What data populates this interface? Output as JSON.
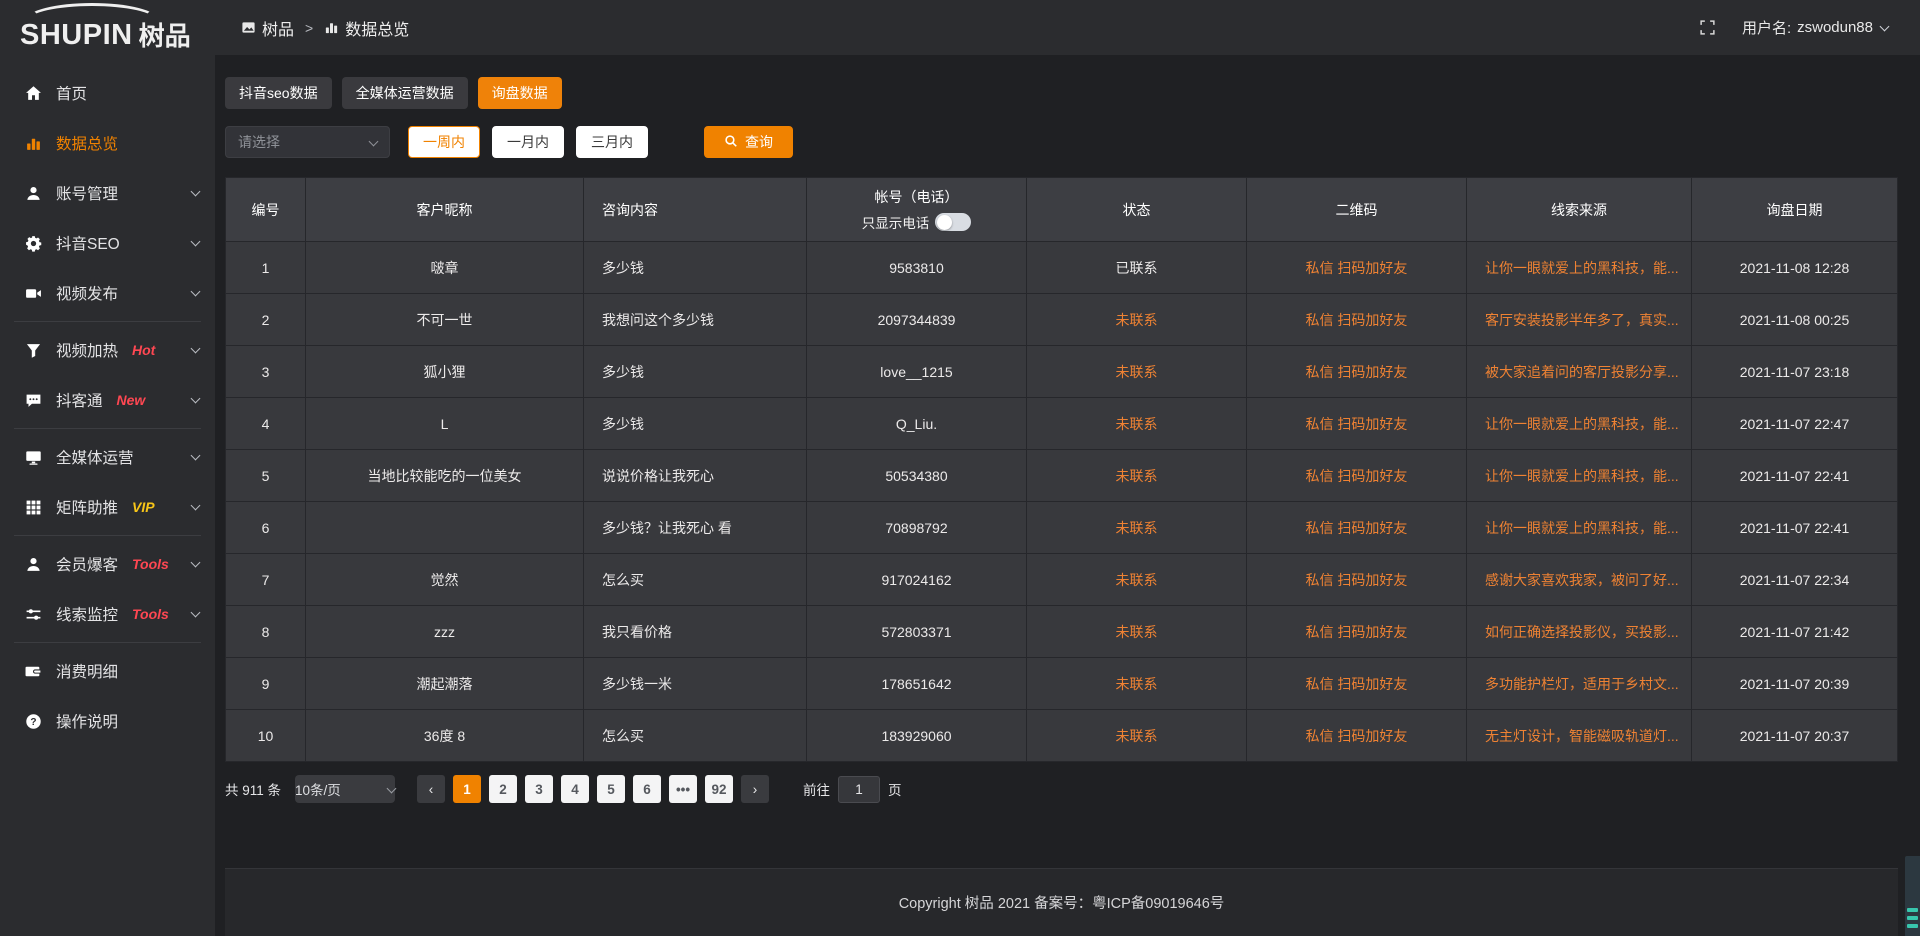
{
  "logo": {
    "brand_en": "SHUPIN",
    "brand_cn": "树品"
  },
  "topbar": {
    "breadcrumb": [
      {
        "label": "树品"
      },
      {
        "label": "数据总览"
      }
    ],
    "separator": ">",
    "username_label": "用户名:",
    "username": "zswodun88"
  },
  "sidebar": {
    "items": [
      {
        "label": "首页",
        "icon": "home",
        "chevron": false
      },
      {
        "label": "数据总览",
        "icon": "chart",
        "active": true,
        "chevron": false
      },
      {
        "label": "账号管理",
        "icon": "user",
        "chevron": true
      },
      {
        "label": "抖音SEO",
        "icon": "gear",
        "chevron": true
      },
      {
        "label": "视频发布",
        "icon": "video",
        "chevron": true,
        "divider_after": true
      },
      {
        "label": "视频加热",
        "icon": "funnel",
        "badge": "Hot",
        "badge_color": "red",
        "chevron": true
      },
      {
        "label": "抖客通",
        "icon": "chat",
        "badge": "New",
        "badge_color": "red",
        "chevron": true,
        "divider_after": true
      },
      {
        "label": "全媒体运营",
        "icon": "monitor",
        "chevron": true
      },
      {
        "label": "矩阵助推",
        "icon": "grid",
        "badge": "VIP",
        "badge_color": "yellow",
        "chevron": true,
        "divider_after": true
      },
      {
        "label": "会员爆客",
        "icon": "person",
        "badge": "Tools",
        "badge_color": "red",
        "chevron": true
      },
      {
        "label": "线索监控",
        "icon": "sliders",
        "badge": "Tools",
        "badge_color": "red",
        "chevron": true,
        "divider_after": true
      },
      {
        "label": "消费明细",
        "icon": "wallet",
        "chevron": false
      },
      {
        "label": "操作说明",
        "icon": "question",
        "chevron": false
      }
    ]
  },
  "tabs": [
    {
      "label": "抖音seo数据",
      "active": false
    },
    {
      "label": "全媒体运营数据",
      "active": false
    },
    {
      "label": "询盘数据",
      "active": true
    }
  ],
  "filters": {
    "select_placeholder": "请选择",
    "period_buttons": [
      {
        "label": "一周内",
        "active": true
      },
      {
        "label": "一月内",
        "active": false
      },
      {
        "label": "三月内",
        "active": false
      }
    ],
    "search_label": "查询"
  },
  "table": {
    "headers": [
      "编号",
      "客户昵称",
      "咨询内容",
      "帐号（电话）",
      "状态",
      "二维码",
      "线索来源",
      "询盘日期"
    ],
    "phone_toggle_label": "只显示电话",
    "rows": [
      {
        "id": "1",
        "nickname": "啵章",
        "content": "多少钱",
        "account": "9583810",
        "status": "已联系",
        "contacted": true,
        "qrcode": "私信 扫码加好友",
        "source": "让你一眼就爱上的黑科技，能...",
        "date": "2021-11-08 12:28"
      },
      {
        "id": "2",
        "nickname": "不可一世",
        "content": "我想问这个多少钱",
        "account": "2097344839",
        "status": "未联系",
        "contacted": false,
        "qrcode": "私信 扫码加好友",
        "source": "客厅安装投影半年多了，真实...",
        "date": "2021-11-08 00:25"
      },
      {
        "id": "3",
        "nickname": "狐小狸",
        "content": "多少钱",
        "account": "love__1215",
        "status": "未联系",
        "contacted": false,
        "qrcode": "私信 扫码加好友",
        "source": "被大家追着问的客厅投影分享...",
        "date": "2021-11-07 23:18"
      },
      {
        "id": "4",
        "nickname": "L",
        "content": "多少钱",
        "account": "Q_Liu.",
        "status": "未联系",
        "contacted": false,
        "qrcode": "私信 扫码加好友",
        "source": "让你一眼就爱上的黑科技，能...",
        "date": "2021-11-07 22:47"
      },
      {
        "id": "5",
        "nickname": "当地比较能吃的一位美女",
        "content": "说说价格让我死心",
        "account": "50534380",
        "status": "未联系",
        "contacted": false,
        "qrcode": "私信 扫码加好友",
        "source": "让你一眼就爱上的黑科技，能...",
        "date": "2021-11-07 22:41"
      },
      {
        "id": "6",
        "nickname": "",
        "content": "多少钱？让我死心 看",
        "account": "70898792",
        "status": "未联系",
        "contacted": false,
        "qrcode": "私信 扫码加好友",
        "source": "让你一眼就爱上的黑科技，能...",
        "date": "2021-11-07 22:41"
      },
      {
        "id": "7",
        "nickname": "觉然",
        "content": "怎么买",
        "account": "917024162",
        "status": "未联系",
        "contacted": false,
        "qrcode": "私信 扫码加好友",
        "source": "感谢大家喜欢我家，被问了好...",
        "date": "2021-11-07 22:34"
      },
      {
        "id": "8",
        "nickname": "zzz",
        "content": "我只看价格",
        "account": "572803371",
        "status": "未联系",
        "contacted": false,
        "qrcode": "私信 扫码加好友",
        "source": "如何正确选择投影仪，买投影...",
        "date": "2021-11-07 21:42"
      },
      {
        "id": "9",
        "nickname": "潮起潮落",
        "content": "多少钱一米",
        "account": "178651642",
        "status": "未联系",
        "contacted": false,
        "qrcode": "私信 扫码加好友",
        "source": "多功能护栏灯，适用于乡村文...",
        "date": "2021-11-07 20:39"
      },
      {
        "id": "10",
        "nickname": "36度 8",
        "content": "怎么买",
        "account": "183929060",
        "status": "未联系",
        "contacted": false,
        "qrcode": "私信 扫码加好友",
        "source": "无主灯设计，智能磁吸轨道灯...",
        "date": "2021-11-07 20:37"
      }
    ]
  },
  "pagination": {
    "total_label": "共 911 条",
    "page_size": "10条/页",
    "prev_label": "‹",
    "next_label": "›",
    "pages": [
      {
        "label": "1",
        "active": true
      },
      {
        "label": "2"
      },
      {
        "label": "3"
      },
      {
        "label": "4"
      },
      {
        "label": "5"
      },
      {
        "label": "6"
      },
      {
        "label": "•••",
        "ellipsis": true
      },
      {
        "label": "92"
      }
    ],
    "goto_label": "前往",
    "goto_value": "1",
    "page_unit": "页"
  },
  "footer": {
    "copyright": "Copyright 树品 2021 备案号：粤ICP备09019646号"
  },
  "colors": {
    "accent_orange": "#f08200",
    "link_orange": "#ef8233",
    "badge_red": "#ff4752",
    "badge_yellow": "#f7c518",
    "sidebar_bg": "#2b2c2f",
    "content_bg": "#1f2023",
    "row_bg": "#38393d",
    "header_row_bg": "#3d3e43",
    "corner_teal": "#38c6ad"
  }
}
